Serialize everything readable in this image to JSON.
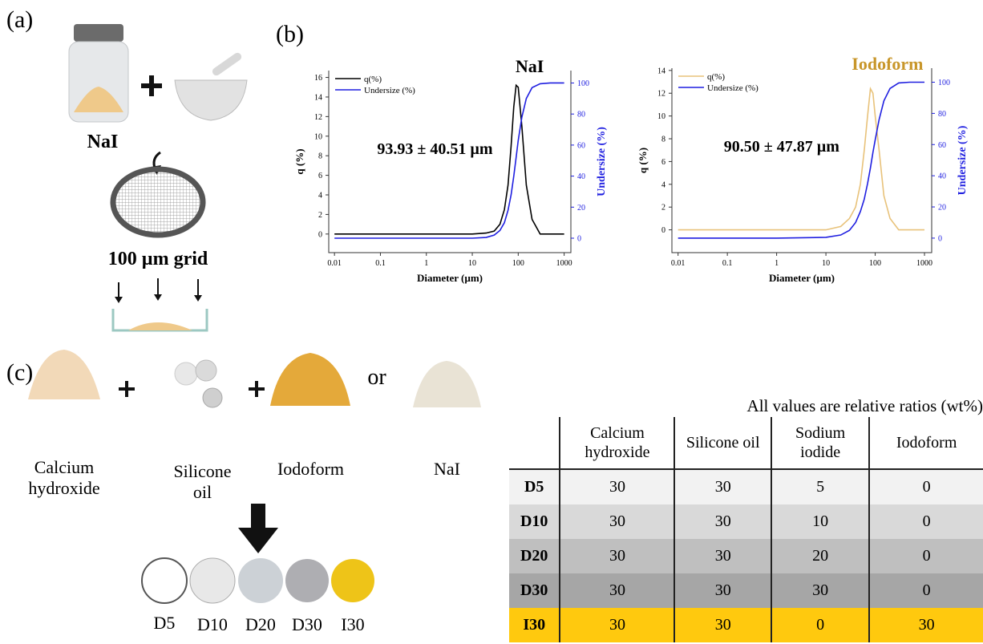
{
  "panel_labels": [
    "(a)",
    "(b)",
    "(c)"
  ],
  "panel_a": {
    "jar_label": "NaI",
    "grid_label": "100 µm grid"
  },
  "chart_data": [
    {
      "type": "line",
      "title": "NaI",
      "title_color": "#000000",
      "annotation": "93.93 ± 40.51 µm",
      "x_label": "Diameter (µm)",
      "y_label": "q (%)",
      "y2_label": "Undersize (%)",
      "xscale": "log",
      "xlim": [
        0.0075,
        1400
      ],
      "xticks": [
        0.01,
        0.1,
        1,
        10,
        100,
        1000
      ],
      "ylim": [
        -1.9,
        16.7
      ],
      "yticks": [
        0,
        2,
        4,
        6,
        8,
        10,
        12,
        14,
        16
      ],
      "y2lim": [
        -9.3,
        108
      ],
      "y2ticks": [
        0,
        20,
        40,
        60,
        80,
        100
      ],
      "legend": "upper left",
      "x": [
        0.01,
        1,
        10,
        20,
        30,
        40,
        50,
        60,
        70,
        80,
        90,
        100,
        120,
        150,
        200,
        300,
        500,
        1000
      ],
      "series": [
        {
          "name": "q(%)",
          "color": "#000000",
          "axis": "y",
          "values": [
            0,
            0,
            0,
            0.1,
            0.3,
            1,
            2.5,
            5,
            9,
            13,
            15.2,
            15,
            11,
            5,
            1.5,
            0,
            0,
            0
          ]
        },
        {
          "name": "Undersize (%)",
          "color": "#1f1fe0",
          "axis": "y2",
          "values": [
            0,
            0,
            0,
            0.5,
            2,
            5,
            10,
            18,
            28,
            40,
            52,
            63,
            78,
            90,
            97,
            99.5,
            100,
            100
          ]
        }
      ]
    },
    {
      "type": "line",
      "title": "Iodoform",
      "title_color": "#c8962a",
      "annotation": "90.50 ± 47.87 µm",
      "x_label": "Diameter (µm)",
      "y_label": "q (%)",
      "y2_label": "Undersize (%)",
      "xscale": "log",
      "xlim": [
        0.0075,
        1400
      ],
      "xticks": [
        0.01,
        0.1,
        1,
        10,
        100,
        1000
      ],
      "ylim": [
        -2,
        14.2
      ],
      "yticks": [
        0,
        2,
        4,
        6,
        8,
        10,
        12,
        14
      ],
      "y2lim": [
        -9.3,
        109
      ],
      "y2ticks": [
        0,
        20,
        40,
        60,
        80,
        100
      ],
      "legend": "upper left",
      "x": [
        0.01,
        1,
        10,
        20,
        30,
        40,
        50,
        60,
        70,
        80,
        90,
        100,
        120,
        150,
        200,
        300,
        500,
        1000
      ],
      "series": [
        {
          "name": "q(%)",
          "color": "#e8c27a",
          "axis": "y",
          "values": [
            0,
            0,
            0,
            0.3,
            1,
            2,
            4,
            7,
            10,
            12.4,
            12,
            10,
            7,
            3,
            1,
            0,
            0,
            0
          ]
        },
        {
          "name": "Undersize (%)",
          "color": "#1f1fe0",
          "axis": "y2",
          "values": [
            0,
            0,
            0.5,
            2,
            5,
            10,
            17,
            25,
            35,
            45,
            55,
            63,
            76,
            88,
            96,
            99.5,
            100,
            100
          ]
        }
      ]
    }
  ],
  "panel_c": {
    "materials": [
      "Calcium hydroxide",
      "Silicone oil",
      "Iodoform",
      "NaI"
    ],
    "or": "or",
    "samples": [
      "D5",
      "D10",
      "D20",
      "D30",
      "I30"
    ]
  },
  "table": {
    "note": "All values are relative ratios (wt%)",
    "header": [
      "Calcium hydroxide",
      "Silicone oil",
      "Sodium iodide",
      "Iodoform"
    ],
    "rows": [
      [
        "D5",
        30,
        30,
        5,
        0
      ],
      [
        "D10",
        30,
        30,
        10,
        0
      ],
      [
        "D20",
        30,
        30,
        20,
        0
      ],
      [
        "D30",
        30,
        30,
        30,
        0
      ],
      [
        "I30",
        30,
        30,
        0,
        30
      ]
    ]
  }
}
